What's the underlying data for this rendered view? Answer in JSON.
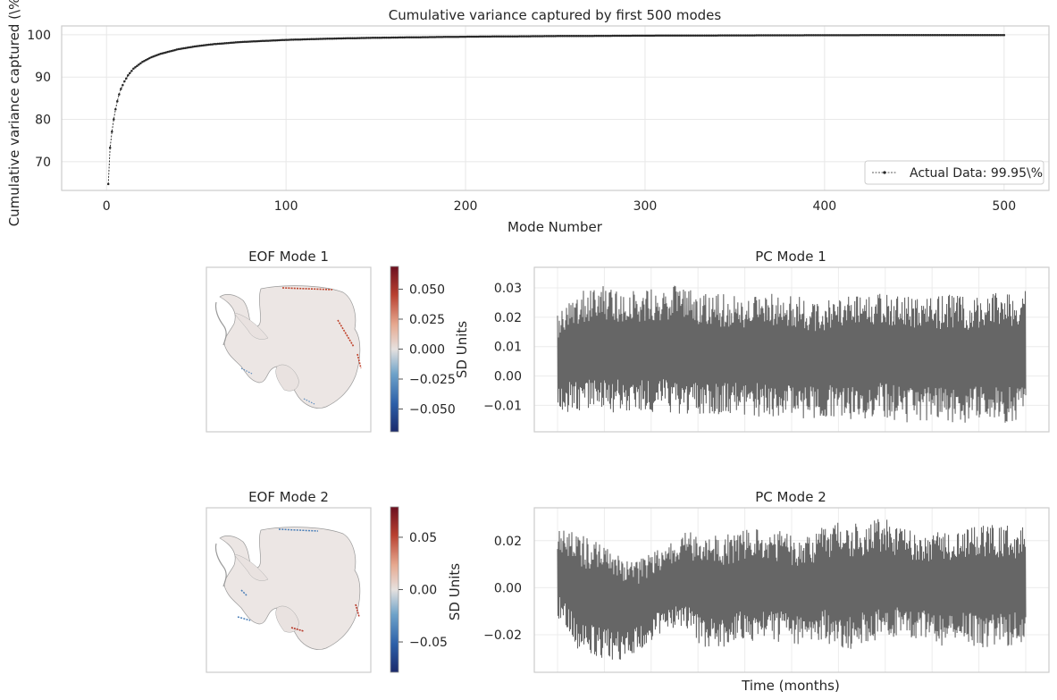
{
  "chart_data": [
    {
      "id": "cumvar",
      "type": "line",
      "title": "Cumulative variance captured by first 500 modes",
      "xlabel": "Mode Number",
      "ylabel": "Cumulative variance captured (\\%",
      "xlim": [
        -25,
        525
      ],
      "ylim": [
        63.2,
        102.1
      ],
      "xticks": [
        0,
        100,
        200,
        300,
        400,
        500
      ],
      "yticks": [
        70,
        80,
        90,
        100
      ],
      "grid": true,
      "legend": {
        "position": "lower-right",
        "entries": [
          "Actual Data: 99.95\\%"
        ]
      },
      "series": [
        {
          "name": "Actual Data: 99.95\\%",
          "color": "#262626",
          "line_style": "dashed",
          "marker": "dot",
          "points": [
            [
              1,
              64.7
            ],
            [
              2,
              73.3
            ],
            [
              3,
              77.1
            ],
            [
              4,
              80.0
            ],
            [
              5,
              82.4
            ],
            [
              6,
              84.3
            ],
            [
              7,
              85.9
            ],
            [
              8,
              87.2
            ],
            [
              10,
              89.0
            ],
            [
              12,
              90.4
            ],
            [
              15,
              92.0
            ],
            [
              20,
              93.6
            ],
            [
              25,
              94.7
            ],
            [
              30,
              95.5
            ],
            [
              40,
              96.6
            ],
            [
              50,
              97.3
            ],
            [
              60,
              97.8
            ],
            [
              75,
              98.3
            ],
            [
              100,
              98.8
            ],
            [
              125,
              99.1
            ],
            [
              150,
              99.3
            ],
            [
              200,
              99.55
            ],
            [
              250,
              99.7
            ],
            [
              300,
              99.8
            ],
            [
              350,
              99.86
            ],
            [
              400,
              99.9
            ],
            [
              450,
              99.93
            ],
            [
              500,
              99.95
            ]
          ]
        }
      ]
    },
    {
      "id": "eof1",
      "type": "heatmap",
      "title": "EOF Mode 1",
      "colorbar": {
        "label": "SD Units",
        "range": [
          -0.069,
          0.069
        ],
        "ticks": [
          "0.050",
          "0.025",
          "0.000",
          "−0.025",
          "−0.050"
        ],
        "tick_values": [
          0.05,
          0.025,
          0,
          -0.025,
          -0.05
        ],
        "colormap": [
          "#1b2a6b",
          "#2c5fa8",
          "#6fa3c9",
          "#d9d6d5",
          "#e6a88f",
          "#b84030",
          "#6b0f1f"
        ]
      }
    },
    {
      "id": "pc1",
      "type": "line",
      "title": "PC Mode 1",
      "ylim": [
        -0.019,
        0.037
      ],
      "yticks": [
        -0.01,
        0.0,
        0.01,
        0.02,
        0.03
      ],
      "ytick_labels": [
        "−0.01",
        "0.00",
        "0.01",
        "0.02",
        "0.03"
      ],
      "grid": true,
      "series": [
        {
          "color": "#666666",
          "note_range": "dense monthly oscillation",
          "upper_envelope": [
            0.022,
            0.029,
            0.031,
            0.03,
            0.029,
            0.03,
            0.031,
            0.029,
            0.028,
            0.027,
            0.029,
            0.028,
            0.027,
            0.026,
            0.028,
            0.027,
            0.029,
            0.028,
            0.026,
            0.028,
            0.027,
            0.028,
            0.029,
            0.03
          ],
          "lower_envelope": [
            -0.013,
            -0.012,
            -0.012,
            -0.013,
            -0.013,
            -0.012,
            -0.013,
            -0.014,
            -0.013,
            -0.013,
            -0.014,
            -0.014,
            -0.015,
            -0.014,
            -0.015,
            -0.015,
            -0.014,
            -0.016,
            -0.015,
            -0.016,
            -0.016,
            -0.015,
            -0.016,
            -0.016
          ]
        }
      ]
    },
    {
      "id": "eof2",
      "type": "heatmap",
      "title": "EOF Mode 2",
      "colorbar": {
        "label": "SD Units",
        "range": [
          -0.079,
          0.079
        ],
        "ticks": [
          "0.05",
          "0.00",
          "−0.05"
        ],
        "tick_values": [
          0.05,
          0,
          -0.05
        ],
        "colormap": [
          "#1b2a6b",
          "#2c5fa8",
          "#6fa3c9",
          "#d9d6d5",
          "#e6a88f",
          "#b84030",
          "#6b0f1f"
        ]
      }
    },
    {
      "id": "pc2",
      "type": "line",
      "title": "PC Mode 2",
      "xlabel": "Time (months)",
      "ylim": [
        -0.036,
        0.034
      ],
      "yticks": [
        -0.02,
        0.0,
        0.02
      ],
      "ytick_labels": [
        "−0.02",
        "0.00",
        "0.02"
      ],
      "grid": true,
      "series": [
        {
          "color": "#666666",
          "upper_envelope": [
            0.027,
            0.023,
            0.02,
            0.015,
            0.012,
            0.017,
            0.023,
            0.025,
            0.022,
            0.024,
            0.026,
            0.024,
            0.02,
            0.026,
            0.029,
            0.027,
            0.03,
            0.025,
            0.023,
            0.026,
            0.025,
            0.028,
            0.027,
            0.026
          ],
          "lower_envelope": [
            -0.013,
            -0.027,
            -0.03,
            -0.031,
            -0.027,
            -0.02,
            -0.017,
            -0.025,
            -0.026,
            -0.022,
            -0.024,
            -0.023,
            -0.025,
            -0.022,
            -0.028,
            -0.024,
            -0.023,
            -0.021,
            -0.022,
            -0.026,
            -0.024,
            -0.026,
            -0.025,
            -0.024
          ]
        }
      ]
    }
  ]
}
